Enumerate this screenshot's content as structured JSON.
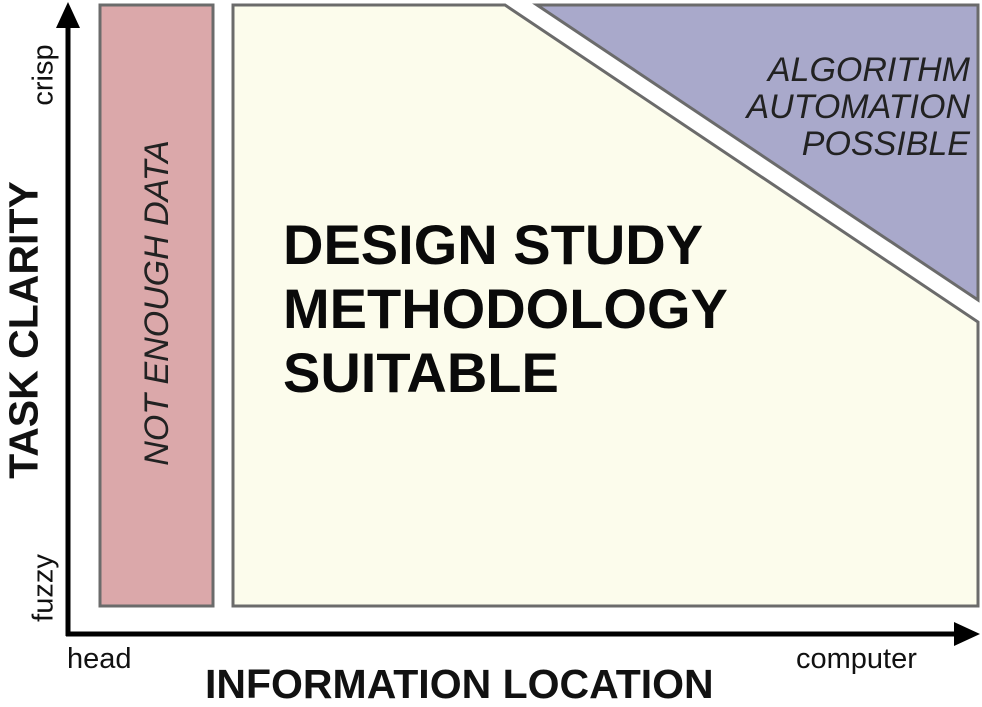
{
  "axes": {
    "y_title": "TASK CLARITY",
    "y_high": "crisp",
    "y_low": "fuzzy",
    "x_title": "INFORMATION LOCATION",
    "x_low": "head",
    "x_high": "computer"
  },
  "regions": {
    "not_enough_data": {
      "label": "NOT ENOUGH DATA",
      "fill": "#dba8aa"
    },
    "design_study": {
      "lines": [
        "DESIGN STUDY",
        "METHODOLOGY",
        "SUITABLE"
      ],
      "fill": "#fcfcec"
    },
    "algorithm": {
      "lines": [
        "ALGORITHM",
        "AUTOMATION",
        "POSSIBLE"
      ],
      "fill": "#a9a9cb"
    }
  },
  "colors": {
    "border": "#6b6b6b",
    "axis": "#000000"
  }
}
